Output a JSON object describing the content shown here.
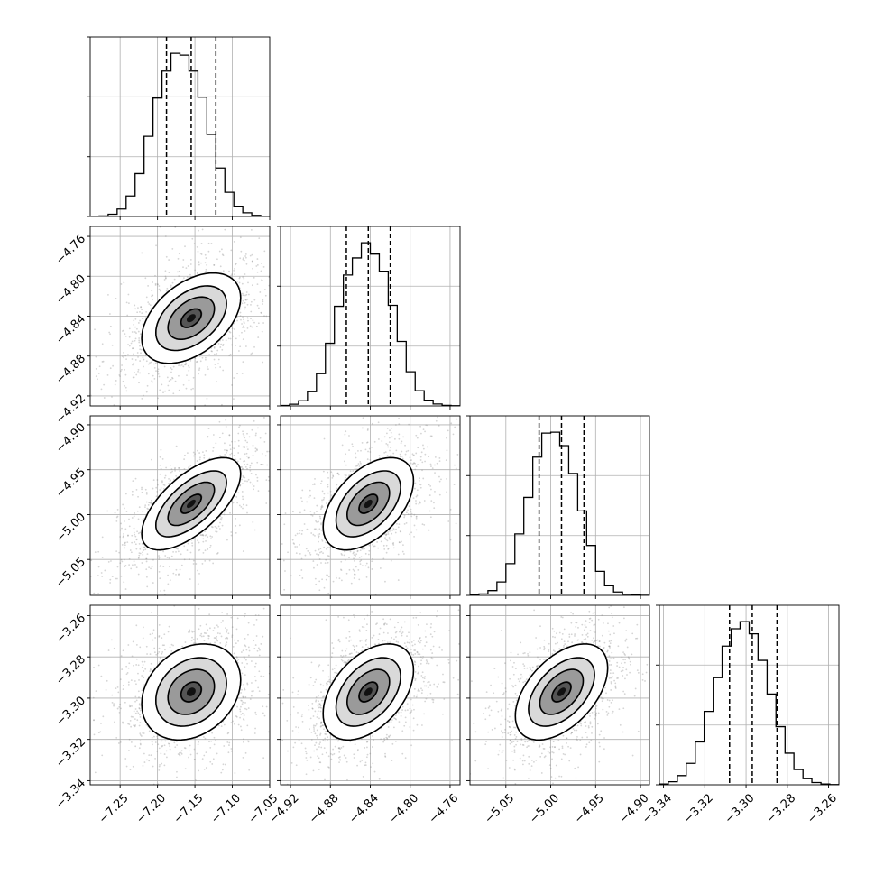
{
  "chart_data": {
    "type": "corner",
    "n_params": 4,
    "colors": {
      "line": "#000000",
      "grid": "#b0b0b0",
      "scatter": "#888888"
    },
    "grid": true,
    "params": [
      {
        "range": [
          -7.29,
          -7.05
        ],
        "ticks": [
          -7.25,
          -7.2,
          -7.15,
          -7.1,
          -7.05
        ],
        "tick_labels": [
          "−7.25",
          "−7.20",
          "−7.15",
          "−7.10",
          "−7.05"
        ],
        "quantiles": [
          -7.188,
          -7.155,
          -7.122
        ],
        "mean": -7.155,
        "sd": 0.027
      },
      {
        "range": [
          -4.93,
          -4.75
        ],
        "ticks": [
          -4.92,
          -4.88,
          -4.84,
          -4.8,
          -4.76
        ],
        "tick_labels": [
          "−4.92",
          "−4.88",
          "−4.84",
          "−4.80",
          "−4.76"
        ],
        "quantiles": [
          -4.864,
          -4.842,
          -4.82
        ],
        "mean": -4.842,
        "sd": 0.0185
      },
      {
        "range": [
          -5.09,
          -4.89
        ],
        "ticks": [
          -5.05,
          -5.0,
          -4.95,
          -4.9
        ],
        "tick_labels": [
          "−5.05",
          "−5.00",
          "−4.95",
          "−4.90"
        ],
        "quantiles": [
          -5.013,
          -4.988,
          -4.963
        ],
        "mean": -4.988,
        "sd": 0.021
      },
      {
        "range": [
          -3.342,
          -3.255
        ],
        "ticks": [
          -3.34,
          -3.32,
          -3.3,
          -3.28,
          -3.26
        ],
        "tick_labels": [
          "−3.34",
          "−3.32",
          "−3.30",
          "−3.28",
          "−3.26"
        ],
        "quantiles": [
          -3.308,
          -3.297,
          -3.285
        ],
        "mean": -3.297,
        "sd": 0.0095
      }
    ],
    "diagonal_histograms": [
      {
        "param": 0,
        "bin_edges": [
          -7.29,
          -7.278,
          -7.266,
          -7.254,
          -7.242,
          -7.23,
          -7.218,
          -7.206,
          -7.194,
          -7.182,
          -7.17,
          -7.158,
          -7.146,
          -7.134,
          -7.122,
          -7.11,
          -7.098,
          -7.086,
          -7.074,
          -7.062,
          -7.05
        ],
        "counts": [
          2,
          6,
          24,
          80,
          220,
          460,
          860,
          1270,
          1560,
          1750,
          1730,
          1560,
          1280,
          880,
          520,
          260,
          110,
          40,
          12,
          3
        ]
      },
      {
        "param": 1,
        "bin_edges": [
          -4.93,
          -4.921,
          -4.912,
          -4.903,
          -4.894,
          -4.885,
          -4.876,
          -4.867,
          -4.858,
          -4.849,
          -4.84,
          -4.831,
          -4.822,
          -4.813,
          -4.804,
          -4.795,
          -4.786,
          -4.777,
          -4.768,
          -4.759,
          -4.75
        ],
        "counts": [
          5,
          18,
          55,
          150,
          340,
          660,
          1050,
          1380,
          1560,
          1720,
          1600,
          1420,
          1060,
          680,
          360,
          160,
          60,
          20,
          6,
          2
        ]
      },
      {
        "param": 2,
        "bin_edges": [
          -5.09,
          -5.08,
          -5.07,
          -5.06,
          -5.05,
          -5.04,
          -5.03,
          -5.02,
          -5.01,
          -5.0,
          -4.99,
          -4.98,
          -4.97,
          -4.96,
          -4.95,
          -4.94,
          -4.93,
          -4.92,
          -4.91,
          -4.9,
          -4.89
        ],
        "counts": [
          4,
          15,
          50,
          140,
          330,
          640,
          1020,
          1440,
          1690,
          1700,
          1560,
          1270,
          880,
          520,
          250,
          100,
          35,
          12,
          4,
          1
        ]
      },
      {
        "param": 3,
        "bin_edges": [
          -3.342,
          -3.3377,
          -3.3333,
          -3.329,
          -3.3246,
          -3.3203,
          -3.3159,
          -3.3116,
          -3.3072,
          -3.3029,
          -3.2985,
          -3.2942,
          -3.2898,
          -3.2855,
          -3.2811,
          -3.2768,
          -3.2724,
          -3.2681,
          -3.2637,
          -3.2594,
          -3.255
        ],
        "counts": [
          8,
          30,
          90,
          210,
          420,
          720,
          1050,
          1360,
          1530,
          1600,
          1480,
          1220,
          890,
          570,
          310,
          150,
          60,
          22,
          7,
          2
        ]
      }
    ],
    "pair_correlations": [
      {
        "x": 0,
        "y": 1,
        "rho": 0.45
      },
      {
        "x": 0,
        "y": 2,
        "rho": 0.65
      },
      {
        "x": 1,
        "y": 2,
        "rho": 0.5
      },
      {
        "x": 0,
        "y": 3,
        "rho": 0.25
      },
      {
        "x": 1,
        "y": 3,
        "rho": 0.45
      },
      {
        "x": 2,
        "y": 3,
        "rho": 0.5
      }
    ]
  }
}
